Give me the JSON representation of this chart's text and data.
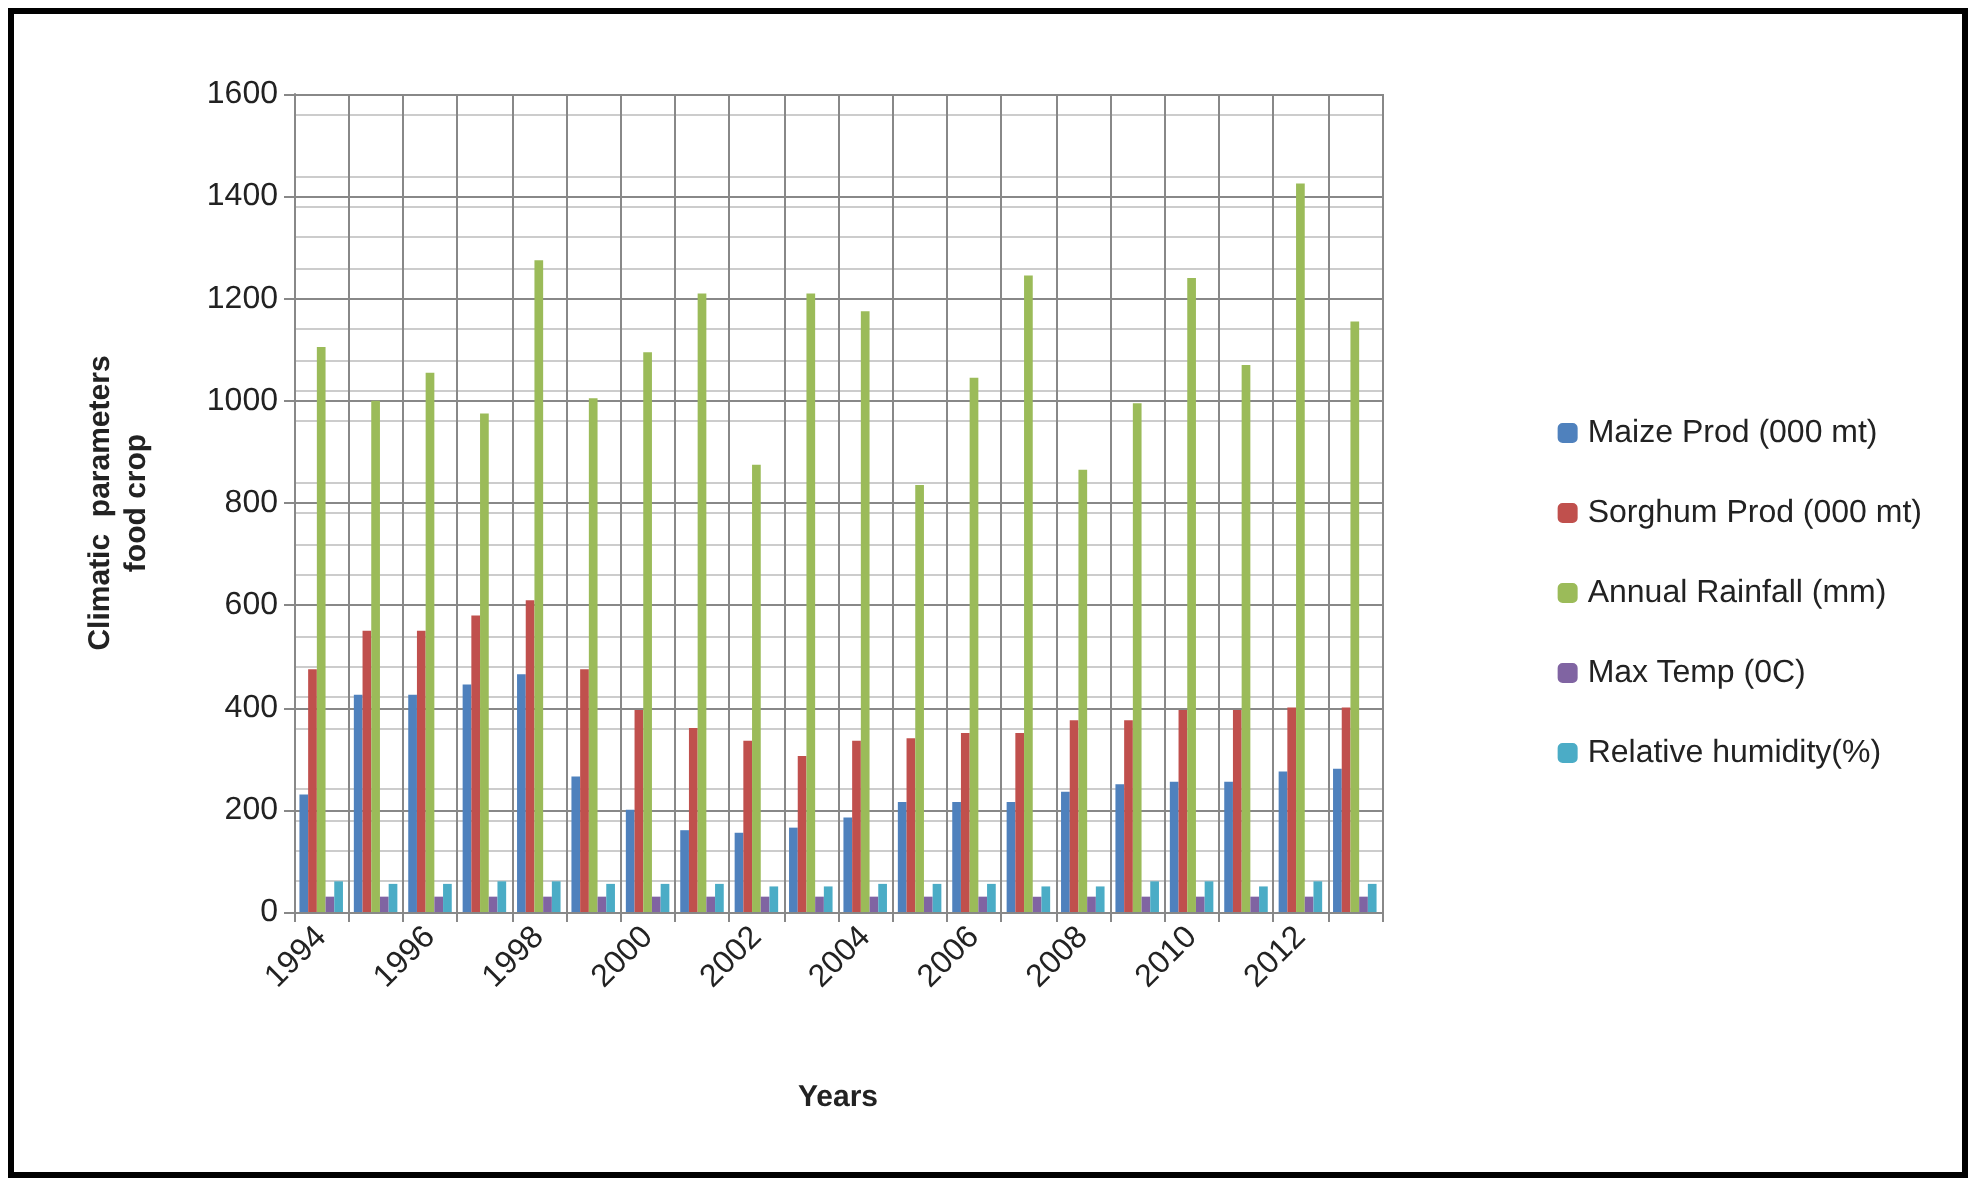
{
  "chart_data": {
    "type": "bar",
    "xlabel": "Years",
    "ylabel": "Climatic  parameters\nfood crop",
    "categories": [
      "1994",
      null,
      "1996",
      null,
      "1998",
      null,
      "2000",
      null,
      "2002",
      null,
      "2004",
      null,
      "2006",
      null,
      "2008",
      null,
      "2010",
      null,
      "2012",
      null
    ],
    "series": [
      {
        "name": "Maize Prod (000 mt)",
        "color": "#4f81bd",
        "values": [
          230,
          425,
          425,
          445,
          465,
          265,
          200,
          160,
          155,
          165,
          185,
          215,
          215,
          215,
          235,
          250,
          255,
          255,
          275,
          280
        ]
      },
      {
        "name": "Sorghum Prod (000 mt)",
        "color": "#c0504d",
        "values": [
          475,
          550,
          550,
          580,
          610,
          475,
          395,
          360,
          335,
          305,
          335,
          340,
          350,
          350,
          375,
          375,
          395,
          395,
          400,
          400
        ]
      },
      {
        "name": "Annual Rainfall (mm)",
        "color": "#9bbb59",
        "values": [
          1105,
          1000,
          1055,
          975,
          1275,
          1005,
          1095,
          1210,
          875,
          1210,
          1175,
          835,
          1045,
          1245,
          865,
          995,
          1240,
          1070,
          1425,
          1155
        ]
      },
      {
        "name": "Max Temp (0C)",
        "color": "#8064a2",
        "values": [
          30,
          30,
          30,
          30,
          30,
          30,
          30,
          30,
          30,
          30,
          30,
          30,
          30,
          30,
          30,
          30,
          30,
          30,
          30,
          30
        ]
      },
      {
        "name": "Relative humidity(%)",
        "color": "#4bacc6",
        "values": [
          60,
          55,
          55,
          60,
          60,
          55,
          55,
          55,
          50,
          50,
          55,
          55,
          55,
          50,
          50,
          60,
          60,
          50,
          60,
          55
        ]
      }
    ],
    "ylim": [
      0,
      1600
    ],
    "yticks": [
      0,
      200,
      400,
      600,
      800,
      1000,
      1200,
      1400,
      1600
    ],
    "grid": true,
    "legend": "right"
  }
}
